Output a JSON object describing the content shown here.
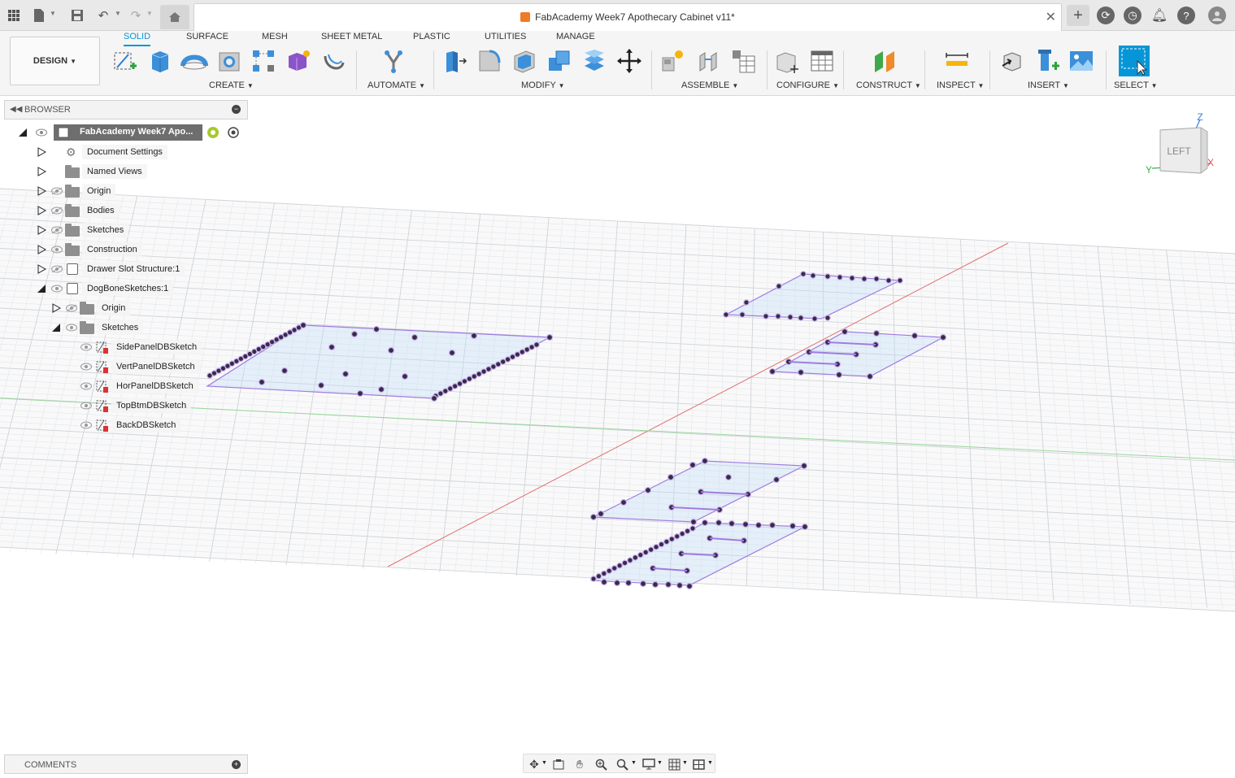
{
  "window": {
    "title": "FabAcademy Week7 Apothecary Cabinet v11*"
  },
  "ribbon": {
    "workspace": "DESIGN",
    "tabs": [
      "SOLID",
      "SURFACE",
      "MESH",
      "SHEET METAL",
      "PLASTIC",
      "UTILITIES",
      "MANAGE"
    ],
    "active_tab": "SOLID",
    "groups": [
      "CREATE",
      "AUTOMATE",
      "MODIFY",
      "ASSEMBLE",
      "CONFIGURE",
      "CONSTRUCT",
      "INSPECT",
      "INSERT",
      "SELECT"
    ]
  },
  "browser": {
    "title": "BROWSER",
    "root": "FabAcademy Week7 Apo...",
    "items": [
      {
        "label": "Document Settings",
        "icon": "gear-icon"
      },
      {
        "label": "Named Views",
        "icon": "folder-icon"
      },
      {
        "label": "Origin",
        "icon": "folder-icon",
        "visible": false
      },
      {
        "label": "Bodies",
        "icon": "folder-icon",
        "visible": false
      },
      {
        "label": "Sketches",
        "icon": "folder-icon",
        "visible": false
      },
      {
        "label": "Construction",
        "icon": "folder-icon",
        "visible": true
      },
      {
        "label": "Drawer Slot Structure:1",
        "icon": "component-icon",
        "visible": false
      },
      {
        "label": "DogBoneSketches:1",
        "icon": "component-icon",
        "visible": true,
        "expanded": true
      },
      {
        "label": "Origin",
        "icon": "folder-icon",
        "visible": false
      },
      {
        "label": "Sketches",
        "icon": "folder-icon",
        "visible": true,
        "expanded": true
      },
      {
        "label": "SidePanelDBSketch",
        "icon": "sketch-icon",
        "visible": true
      },
      {
        "label": "VertPanelDBSketch",
        "icon": "sketch-icon",
        "visible": true
      },
      {
        "label": "HorPanelDBSketch",
        "icon": "sketch-icon",
        "visible": true
      },
      {
        "label": "TopBtmDBSketch",
        "icon": "sketch-icon",
        "visible": true
      },
      {
        "label": "BackDBSketch",
        "icon": "sketch-icon",
        "visible": true
      }
    ]
  },
  "comments": {
    "title": "COMMENTS"
  },
  "viewcube": {
    "face": "LEFT",
    "axes": [
      "Z",
      "Y",
      "X"
    ]
  },
  "colors": {
    "accent": "#0696d7",
    "sketch": "#a07be0",
    "point": "#3a2a4a"
  }
}
